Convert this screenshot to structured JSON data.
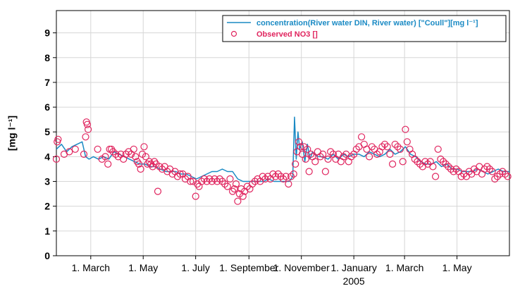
{
  "chart_data": {
    "type": "line+scatter",
    "ylabel": "[mg l⁻¹]",
    "ylim": [
      0,
      9.9
    ],
    "yticks": [
      0,
      1,
      2,
      3,
      4,
      5,
      6,
      7,
      8,
      9
    ],
    "x_range": [
      "2004-01-21",
      "2005-07-01"
    ],
    "x_ticks": [
      {
        "date": "2004-03-01",
        "label": "1. March"
      },
      {
        "date": "2004-05-01",
        "label": "1. May"
      },
      {
        "date": "2004-07-01",
        "label": "1. July"
      },
      {
        "date": "2004-09-01",
        "label": "1. September"
      },
      {
        "date": "2004-11-01",
        "label": "1. November"
      },
      {
        "date": "2005-01-01",
        "label": "1. January"
      },
      {
        "date": "2005-03-01",
        "label": "1. March"
      },
      {
        "date": "2005-05-01",
        "label": "1. May"
      }
    ],
    "year_label": "2005",
    "grid": true,
    "legend_position": "top-right",
    "colors": {
      "line": "#1a8ac4",
      "markers": "#e0245e"
    },
    "series": [
      {
        "name": "concentration(River water DIN, River water) [\"Coull\"][mg l⁻¹]",
        "kind": "line",
        "x": [
          "2004-01-21",
          "2004-01-27",
          "2004-02-02",
          "2004-02-08",
          "2004-02-14",
          "2004-02-20",
          "2004-02-24",
          "2004-02-28",
          "2004-03-04",
          "2004-03-10",
          "2004-03-16",
          "2004-03-22",
          "2004-03-28",
          "2004-04-03",
          "2004-04-09",
          "2004-04-15",
          "2004-04-21",
          "2004-04-27",
          "2004-05-03",
          "2004-05-09",
          "2004-05-15",
          "2004-05-21",
          "2004-05-27",
          "2004-06-02",
          "2004-06-08",
          "2004-06-14",
          "2004-06-20",
          "2004-06-26",
          "2004-07-02",
          "2004-07-08",
          "2004-07-14",
          "2004-07-20",
          "2004-07-26",
          "2004-08-01",
          "2004-08-07",
          "2004-08-13",
          "2004-08-19",
          "2004-08-25",
          "2004-08-31",
          "2004-09-06",
          "2004-09-12",
          "2004-09-18",
          "2004-09-24",
          "2004-09-30",
          "2004-10-06",
          "2004-10-12",
          "2004-10-18",
          "2004-10-22",
          "2004-10-24",
          "2004-10-26",
          "2004-10-28",
          "2004-10-30",
          "2004-11-02",
          "2004-11-05",
          "2004-11-08",
          "2004-11-11",
          "2004-11-14",
          "2004-11-20",
          "2004-11-26",
          "2004-12-02",
          "2004-12-08",
          "2004-12-14",
          "2004-12-20",
          "2004-12-26",
          "2005-01-01",
          "2005-01-07",
          "2005-01-13",
          "2005-01-19",
          "2005-01-25",
          "2005-01-31",
          "2005-02-06",
          "2005-02-12",
          "2005-02-18",
          "2005-02-24",
          "2005-03-02",
          "2005-03-08",
          "2005-03-14",
          "2005-03-20",
          "2005-03-26",
          "2005-04-01",
          "2005-04-07",
          "2005-04-13",
          "2005-04-19",
          "2005-04-25",
          "2005-05-01",
          "2005-05-07",
          "2005-05-13",
          "2005-05-19",
          "2005-05-25",
          "2005-05-31",
          "2005-06-06",
          "2005-06-12",
          "2005-06-18",
          "2005-06-24",
          "2005-07-01"
        ],
        "values": [
          4.3,
          4.5,
          4.2,
          4.4,
          4.5,
          4.6,
          4.0,
          3.9,
          4.0,
          3.9,
          4.0,
          3.9,
          4.2,
          4.1,
          4.0,
          3.9,
          3.8,
          3.7,
          3.7,
          3.6,
          3.6,
          3.5,
          3.4,
          3.4,
          3.4,
          3.3,
          3.3,
          3.2,
          3.1,
          3.2,
          3.3,
          3.4,
          3.4,
          3.5,
          3.4,
          3.4,
          3.1,
          3.0,
          3.0,
          3.0,
          3.0,
          3.0,
          3.1,
          3.0,
          3.0,
          3.0,
          3.0,
          3.2,
          5.6,
          3.9,
          5.0,
          4.3,
          4.6,
          3.8,
          4.5,
          3.9,
          4.2,
          4.0,
          4.0,
          3.9,
          4.1,
          3.9,
          4.1,
          4.0,
          4.1,
          4.1,
          4.0,
          4.2,
          4.1,
          4.0,
          4.1,
          4.3,
          4.1,
          4.2,
          4.4,
          4.1,
          4.0,
          3.8,
          3.7,
          3.7,
          3.8,
          3.6,
          3.7,
          3.5,
          3.5,
          3.4,
          3.4,
          3.4,
          3.5,
          3.4,
          3.3,
          3.4,
          3.5,
          3.4,
          3.4
        ]
      },
      {
        "name": "Observed NO3 []",
        "kind": "scatter",
        "points": [
          [
            "2004-01-21",
            3.9
          ],
          [
            "2004-01-22",
            4.6
          ],
          [
            "2004-01-23",
            4.7
          ],
          [
            "2004-01-30",
            4.1
          ],
          [
            "2004-02-05",
            4.2
          ],
          [
            "2004-02-12",
            4.3
          ],
          [
            "2004-02-22",
            4.1
          ],
          [
            "2004-02-24",
            4.8
          ],
          [
            "2004-02-25",
            5.4
          ],
          [
            "2004-02-26",
            5.3
          ],
          [
            "2004-02-27",
            5.1
          ],
          [
            "2004-03-09",
            4.3
          ],
          [
            "2004-03-14",
            3.9
          ],
          [
            "2004-03-18",
            4.0
          ],
          [
            "2004-03-21",
            3.7
          ],
          [
            "2004-03-23",
            4.3
          ],
          [
            "2004-03-25",
            4.3
          ],
          [
            "2004-03-27",
            4.2
          ],
          [
            "2004-03-30",
            4.1
          ],
          [
            "2004-04-02",
            4.0
          ],
          [
            "2004-04-05",
            4.1
          ],
          [
            "2004-04-08",
            3.9
          ],
          [
            "2004-04-11",
            4.1
          ],
          [
            "2004-04-14",
            4.2
          ],
          [
            "2004-04-17",
            4.1
          ],
          [
            "2004-04-20",
            4.3
          ],
          [
            "2004-04-22",
            4.0
          ],
          [
            "2004-04-24",
            3.8
          ],
          [
            "2004-04-26",
            3.7
          ],
          [
            "2004-04-28",
            3.5
          ],
          [
            "2004-04-30",
            4.1
          ],
          [
            "2004-05-02",
            4.4
          ],
          [
            "2004-05-04",
            4.0
          ],
          [
            "2004-05-06",
            3.7
          ],
          [
            "2004-05-08",
            3.8
          ],
          [
            "2004-05-10",
            3.7
          ],
          [
            "2004-05-12",
            3.6
          ],
          [
            "2004-05-14",
            3.8
          ],
          [
            "2004-05-16",
            3.7
          ],
          [
            "2004-05-18",
            2.6
          ],
          [
            "2004-05-20",
            3.6
          ],
          [
            "2004-05-23",
            3.5
          ],
          [
            "2004-05-26",
            3.6
          ],
          [
            "2004-05-29",
            3.4
          ],
          [
            "2004-06-01",
            3.5
          ],
          [
            "2004-06-04",
            3.3
          ],
          [
            "2004-06-07",
            3.4
          ],
          [
            "2004-06-10",
            3.2
          ],
          [
            "2004-06-13",
            3.3
          ],
          [
            "2004-06-16",
            3.3
          ],
          [
            "2004-06-19",
            3.1
          ],
          [
            "2004-06-22",
            3.2
          ],
          [
            "2004-06-25",
            3.0
          ],
          [
            "2004-06-28",
            3.0
          ],
          [
            "2004-07-01",
            2.4
          ],
          [
            "2004-07-03",
            2.9
          ],
          [
            "2004-07-05",
            2.8
          ],
          [
            "2004-07-08",
            3.0
          ],
          [
            "2004-07-11",
            3.1
          ],
          [
            "2004-07-14",
            3.0
          ],
          [
            "2004-07-17",
            3.1
          ],
          [
            "2004-07-20",
            3.0
          ],
          [
            "2004-07-23",
            3.1
          ],
          [
            "2004-07-26",
            3.0
          ],
          [
            "2004-07-29",
            3.1
          ],
          [
            "2004-08-01",
            3.0
          ],
          [
            "2004-08-04",
            2.9
          ],
          [
            "2004-08-07",
            2.8
          ],
          [
            "2004-08-10",
            3.1
          ],
          [
            "2004-08-13",
            2.6
          ],
          [
            "2004-08-15",
            2.7
          ],
          [
            "2004-08-17",
            2.9
          ],
          [
            "2004-08-19",
            2.2
          ],
          [
            "2004-08-21",
            2.5
          ],
          [
            "2004-08-23",
            2.7
          ],
          [
            "2004-08-25",
            2.4
          ],
          [
            "2004-08-27",
            2.6
          ],
          [
            "2004-08-30",
            2.8
          ],
          [
            "2004-09-02",
            2.7
          ],
          [
            "2004-09-05",
            2.9
          ],
          [
            "2004-09-08",
            3.0
          ],
          [
            "2004-09-11",
            3.1
          ],
          [
            "2004-09-14",
            3.0
          ],
          [
            "2004-09-17",
            3.2
          ],
          [
            "2004-09-20",
            3.1
          ],
          [
            "2004-09-23",
            3.2
          ],
          [
            "2004-09-26",
            3.1
          ],
          [
            "2004-09-29",
            3.3
          ],
          [
            "2004-10-02",
            3.2
          ],
          [
            "2004-10-05",
            3.3
          ],
          [
            "2004-10-08",
            3.2
          ],
          [
            "2004-10-11",
            3.1
          ],
          [
            "2004-10-14",
            3.2
          ],
          [
            "2004-10-17",
            2.9
          ],
          [
            "2004-10-20",
            3.2
          ],
          [
            "2004-10-23",
            3.3
          ],
          [
            "2004-10-25",
            3.7
          ],
          [
            "2004-10-27",
            4.2
          ],
          [
            "2004-10-29",
            4.6
          ],
          [
            "2004-10-31",
            4.4
          ],
          [
            "2004-11-02",
            4.1
          ],
          [
            "2004-11-04",
            4.4
          ],
          [
            "2004-11-06",
            3.9
          ],
          [
            "2004-11-08",
            4.3
          ],
          [
            "2004-11-10",
            3.4
          ],
          [
            "2004-11-12",
            4.1
          ],
          [
            "2004-11-14",
            4.0
          ],
          [
            "2004-11-17",
            3.8
          ],
          [
            "2004-11-20",
            4.2
          ],
          [
            "2004-11-23",
            4.0
          ],
          [
            "2004-11-26",
            4.1
          ],
          [
            "2004-11-29",
            3.4
          ],
          [
            "2004-12-02",
            3.9
          ],
          [
            "2004-12-05",
            4.2
          ],
          [
            "2004-12-08",
            4.1
          ],
          [
            "2004-12-11",
            3.9
          ],
          [
            "2004-12-14",
            4.1
          ],
          [
            "2004-12-17",
            3.8
          ],
          [
            "2004-12-20",
            4.0
          ],
          [
            "2004-12-23",
            4.1
          ],
          [
            "2004-12-26",
            3.8
          ],
          [
            "2004-12-29",
            4.0
          ],
          [
            "2005-01-01",
            4.1
          ],
          [
            "2005-01-04",
            4.3
          ],
          [
            "2005-01-07",
            4.4
          ],
          [
            "2005-01-10",
            4.8
          ],
          [
            "2005-01-13",
            4.5
          ],
          [
            "2005-01-16",
            4.3
          ],
          [
            "2005-01-19",
            4.0
          ],
          [
            "2005-01-22",
            4.4
          ],
          [
            "2005-01-25",
            4.3
          ],
          [
            "2005-01-28",
            4.1
          ],
          [
            "2005-01-31",
            4.2
          ],
          [
            "2005-02-03",
            4.4
          ],
          [
            "2005-02-06",
            4.5
          ],
          [
            "2005-02-09",
            4.4
          ],
          [
            "2005-02-12",
            4.1
          ],
          [
            "2005-02-15",
            3.7
          ],
          [
            "2005-02-18",
            4.5
          ],
          [
            "2005-02-21",
            4.4
          ],
          [
            "2005-02-24",
            4.3
          ],
          [
            "2005-02-27",
            3.8
          ],
          [
            "2005-03-02",
            5.1
          ],
          [
            "2005-03-04",
            4.6
          ],
          [
            "2005-03-07",
            4.3
          ],
          [
            "2005-03-10",
            4.1
          ],
          [
            "2005-03-13",
            3.9
          ],
          [
            "2005-03-16",
            3.8
          ],
          [
            "2005-03-19",
            3.7
          ],
          [
            "2005-03-22",
            3.6
          ],
          [
            "2005-03-25",
            3.8
          ],
          [
            "2005-03-28",
            3.7
          ],
          [
            "2005-03-31",
            3.8
          ],
          [
            "2005-04-03",
            3.6
          ],
          [
            "2005-04-06",
            3.2
          ],
          [
            "2005-04-09",
            4.3
          ],
          [
            "2005-04-12",
            3.9
          ],
          [
            "2005-04-15",
            3.8
          ],
          [
            "2005-04-18",
            3.7
          ],
          [
            "2005-04-21",
            3.6
          ],
          [
            "2005-04-24",
            3.5
          ],
          [
            "2005-04-27",
            3.4
          ],
          [
            "2005-04-30",
            3.5
          ],
          [
            "2005-05-03",
            3.4
          ],
          [
            "2005-05-06",
            3.2
          ],
          [
            "2005-05-09",
            3.3
          ],
          [
            "2005-05-12",
            3.2
          ],
          [
            "2005-05-15",
            3.4
          ],
          [
            "2005-05-18",
            3.3
          ],
          [
            "2005-05-21",
            3.5
          ],
          [
            "2005-05-24",
            3.4
          ],
          [
            "2005-05-27",
            3.6
          ],
          [
            "2005-05-30",
            3.3
          ],
          [
            "2005-06-02",
            3.5
          ],
          [
            "2005-06-05",
            3.6
          ],
          [
            "2005-06-08",
            3.5
          ],
          [
            "2005-06-11",
            3.4
          ],
          [
            "2005-06-14",
            3.1
          ],
          [
            "2005-06-17",
            3.2
          ],
          [
            "2005-06-20",
            3.3
          ],
          [
            "2005-06-23",
            3.4
          ],
          [
            "2005-06-26",
            3.3
          ],
          [
            "2005-06-29",
            3.2
          ]
        ]
      }
    ]
  }
}
